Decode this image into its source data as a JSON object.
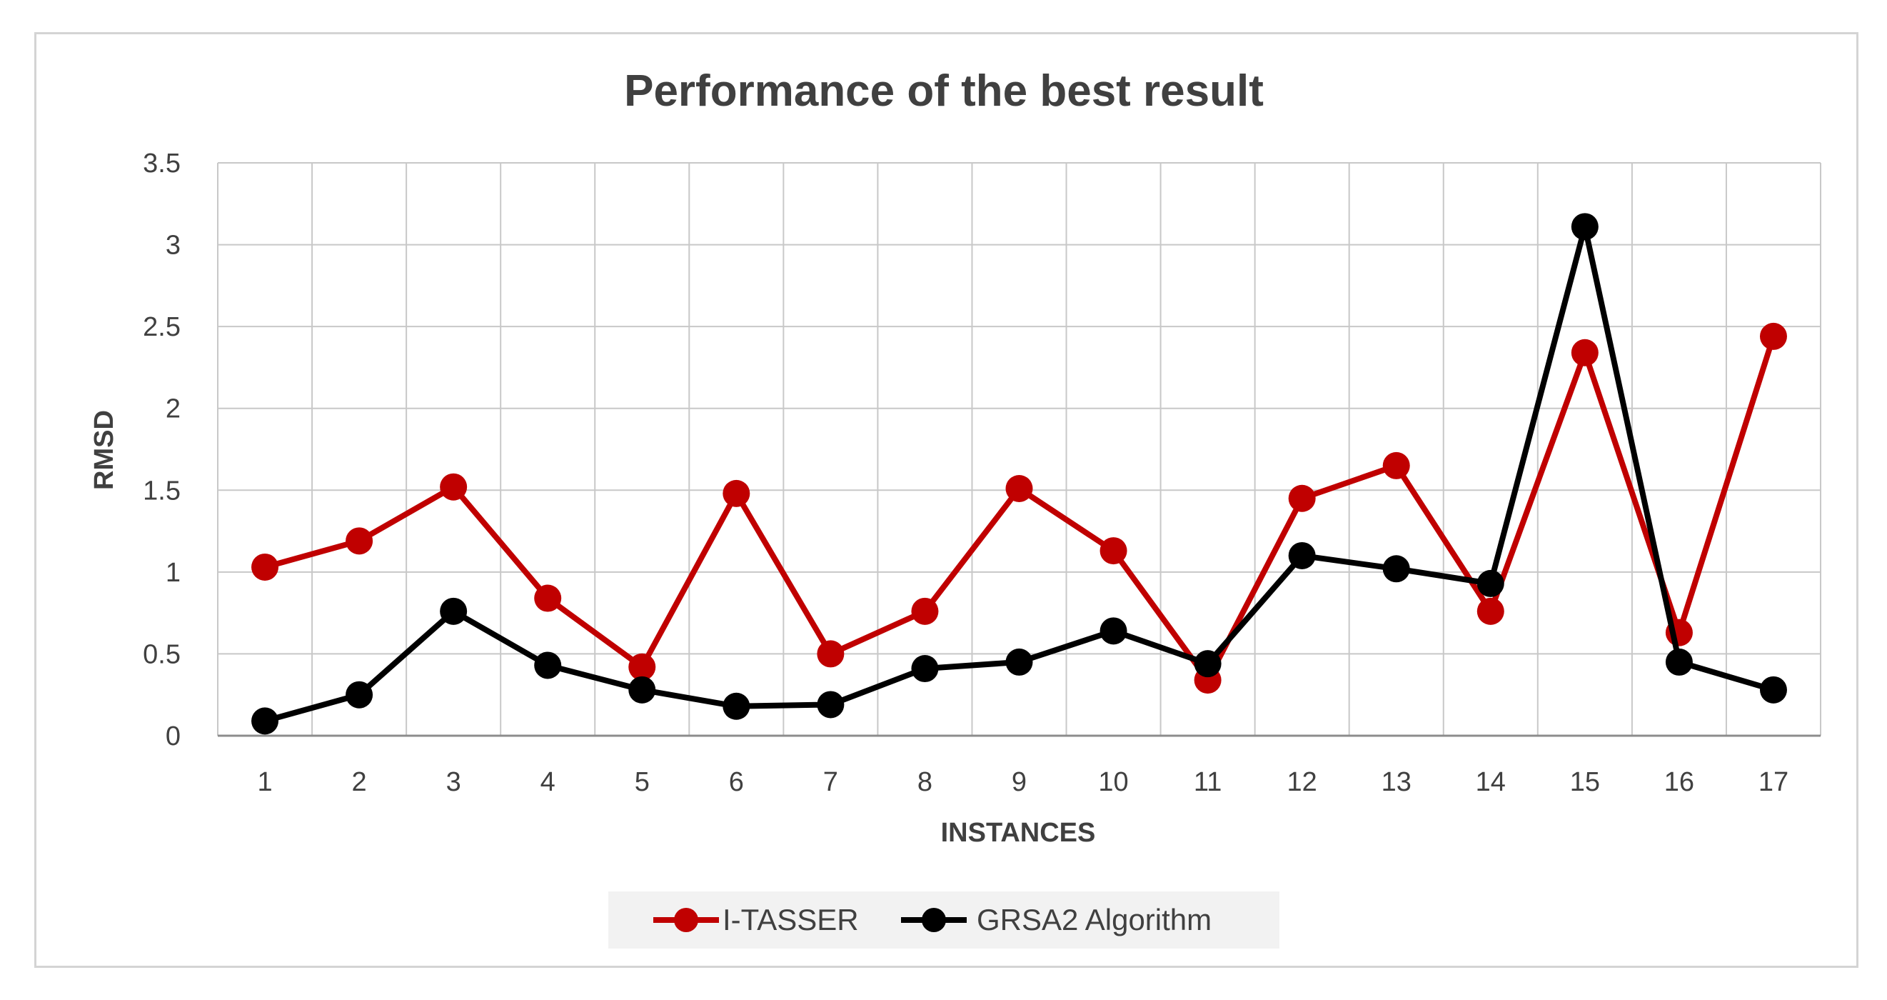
{
  "chart_data": {
    "type": "line",
    "title": "Performance of the best result",
    "xlabel": "INSTANCES",
    "ylabel": "RMSD",
    "categories": [
      "1",
      "2",
      "3",
      "4",
      "5",
      "6",
      "7",
      "8",
      "9",
      "10",
      "11",
      "12",
      "13",
      "14",
      "15",
      "16",
      "17"
    ],
    "ylim": [
      0,
      3.5
    ],
    "yticks": [
      "0",
      "0.5",
      "1",
      "1.5",
      "2",
      "2.5",
      "3",
      "3.5"
    ],
    "grid": true,
    "legend_position": "bottom",
    "series": [
      {
        "name": "I-TASSER",
        "color": "#c00000",
        "values": [
          1.03,
          1.19,
          1.52,
          0.84,
          0.42,
          1.48,
          0.5,
          0.76,
          1.51,
          1.13,
          0.34,
          1.45,
          1.65,
          0.76,
          2.34,
          0.63,
          2.44
        ]
      },
      {
        "name": "GRSA2 Algorithm",
        "color": "#000000",
        "values": [
          0.09,
          0.25,
          0.76,
          0.43,
          0.28,
          0.18,
          0.19,
          0.41,
          0.45,
          0.64,
          0.44,
          1.1,
          1.02,
          0.93,
          3.11,
          0.45,
          0.28
        ]
      }
    ]
  }
}
